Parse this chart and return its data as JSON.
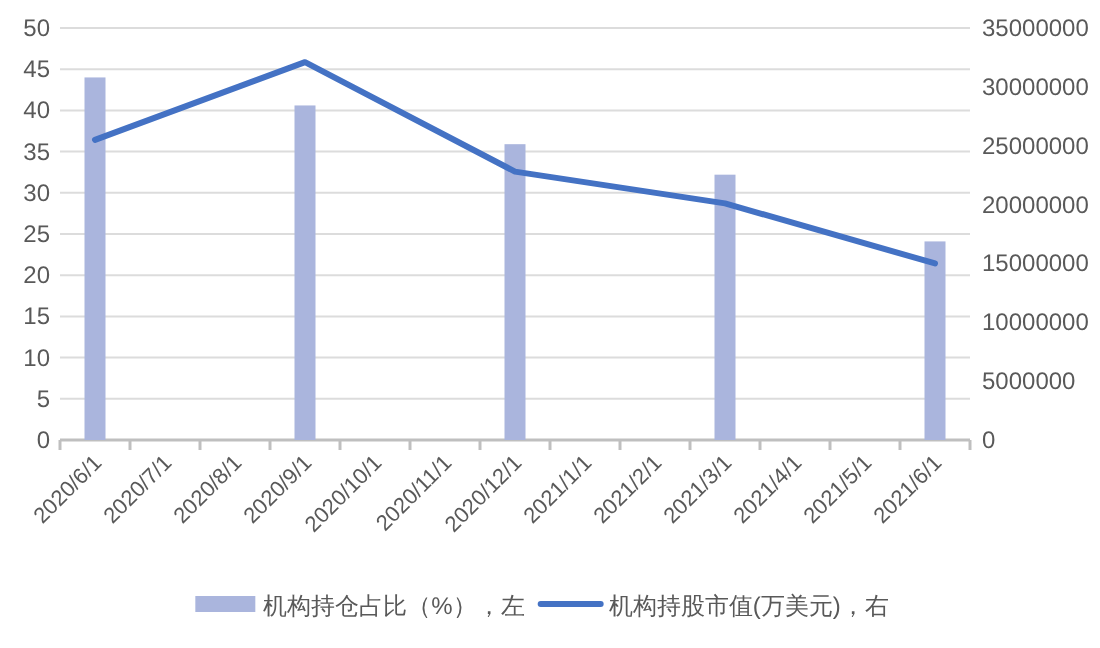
{
  "chart_data": {
    "type": "bar",
    "categories": [
      "2020/6/1",
      "2020/7/1",
      "2020/8/1",
      "2020/9/1",
      "2020/10/1",
      "2020/11/1",
      "2020/12/1",
      "2021/1/1",
      "2021/2/1",
      "2021/3/1",
      "2021/4/1",
      "2021/5/1",
      "2021/6/1"
    ],
    "series": [
      {
        "name": "机构持仓占比（%），左",
        "color": "#aab5dd",
        "values": [
          44,
          null,
          null,
          40.6,
          null,
          null,
          35.9,
          null,
          null,
          32.2,
          null,
          null,
          24.1
        ]
      },
      {
        "name": "机构持股市值(万美元)，右",
        "type": "line",
        "axis": "y2",
        "color": "#4472c4",
        "x": [
          "2020/6/1",
          "2020/9/1",
          "2020/12/1",
          "2021/3/1",
          "2021/6/1"
        ],
        "values": [
          25500000,
          32100000,
          22800000,
          20100000,
          15000000
        ]
      }
    ],
    "ylim": [
      0,
      50
    ],
    "yticks": [
      0,
      5,
      10,
      15,
      20,
      25,
      30,
      35,
      40,
      45,
      50
    ],
    "y2lim": [
      0,
      35000000
    ],
    "y2ticks": [
      0,
      5000000,
      10000000,
      15000000,
      20000000,
      25000000,
      30000000,
      35000000
    ],
    "grid": "y",
    "legend": "bottom",
    "marker": "none",
    "line_style": "solid"
  }
}
